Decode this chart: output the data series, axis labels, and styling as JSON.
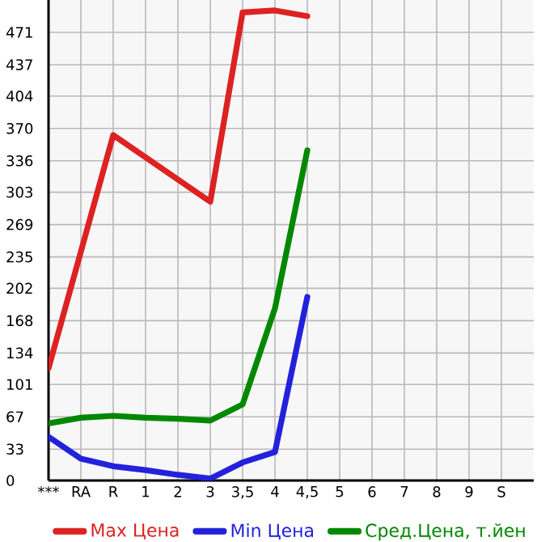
{
  "chart_data": {
    "type": "line",
    "categories": [
      "***",
      "RA",
      "R",
      "1",
      "2",
      "3",
      "3,5",
      "4",
      "4,5",
      "5",
      "6",
      "7",
      "8",
      "9",
      "S"
    ],
    "series": [
      {
        "name": "Max Цена",
        "color": "#dd2222",
        "values": [
          118,
          null,
          363,
          null,
          null,
          293,
          492,
          494,
          488,
          null,
          null,
          null,
          null,
          null,
          null
        ]
      },
      {
        "name": "Min Цена",
        "color": "#2222dd",
        "values": [
          46,
          23,
          15,
          11,
          6,
          2,
          19,
          30,
          193,
          null,
          null,
          null,
          null,
          null,
          null
        ]
      },
      {
        "name": "Сред.Цена, т.йен",
        "color": "#008800",
        "values": [
          60,
          66,
          68,
          66,
          65,
          63,
          80,
          181,
          347,
          null,
          null,
          null,
          null,
          null,
          null
        ]
      }
    ],
    "ylim": [
      0,
      505
    ],
    "yticks": [
      0,
      33,
      67,
      101,
      134,
      168,
      202,
      235,
      269,
      303,
      336,
      370,
      404,
      437,
      471
    ],
    "grid": true,
    "legend": "bottom",
    "marker": "none",
    "line_style": "solid"
  }
}
